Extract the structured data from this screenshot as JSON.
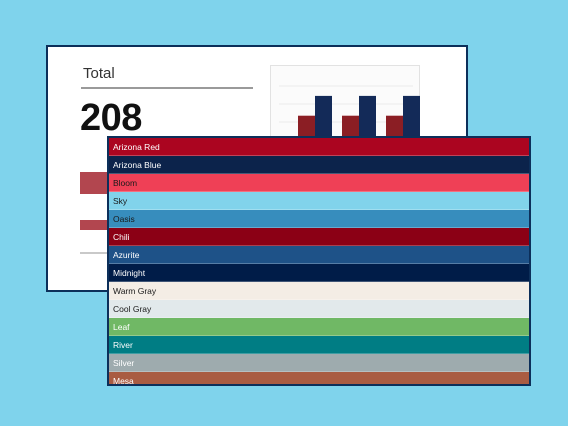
{
  "dashboard": {
    "total_label": "Total",
    "total_value": "208",
    "mini_chart": {
      "bars": [
        {
          "color": "#8b1e24",
          "value": 0.55
        },
        {
          "color": "#132a58",
          "value": 0.85
        },
        {
          "color": "#8b1e24",
          "value": 0.55
        },
        {
          "color": "#132a58",
          "value": 0.85
        },
        {
          "color": "#8b1e24",
          "value": 0.55
        },
        {
          "color": "#132a58",
          "value": 0.85
        }
      ]
    },
    "faded_rows": [
      {
        "color": "#b2464f"
      },
      {
        "color": "#b2464f"
      },
      {
        "color": "#c9c9c9"
      }
    ]
  },
  "palette": {
    "swatches": [
      {
        "label": "Arizona Red",
        "color": "#ab0520",
        "text": "#ffffff"
      },
      {
        "label": "Arizona Blue",
        "color": "#0c234b",
        "text": "#ffffff"
      },
      {
        "label": "Bloom",
        "color": "#ef4056",
        "text": "#1a1a1a"
      },
      {
        "label": "Sky",
        "color": "#81d3eb",
        "text": "#1a1a1a"
      },
      {
        "label": "Oasis",
        "color": "#378dbd",
        "text": "#1a1a1a"
      },
      {
        "label": "Chili",
        "color": "#8b0015",
        "text": "#ffffff"
      },
      {
        "label": "Azurite",
        "color": "#1e5288",
        "text": "#ffffff"
      },
      {
        "label": "Midnight",
        "color": "#001c48",
        "text": "#ffffff"
      },
      {
        "label": "Warm Gray",
        "color": "#f4ede5",
        "text": "#1a1a1a"
      },
      {
        "label": "Cool Gray",
        "color": "#e2e9eb",
        "text": "#1a1a1a"
      },
      {
        "label": "Leaf",
        "color": "#70b865",
        "text": "#ffffff"
      },
      {
        "label": "River",
        "color": "#007d84",
        "text": "#ffffff"
      },
      {
        "label": "Silver",
        "color": "#9eabae",
        "text": "#ffffff"
      },
      {
        "label": "Mesa",
        "color": "#a95c42",
        "text": "#ffffff"
      }
    ]
  }
}
